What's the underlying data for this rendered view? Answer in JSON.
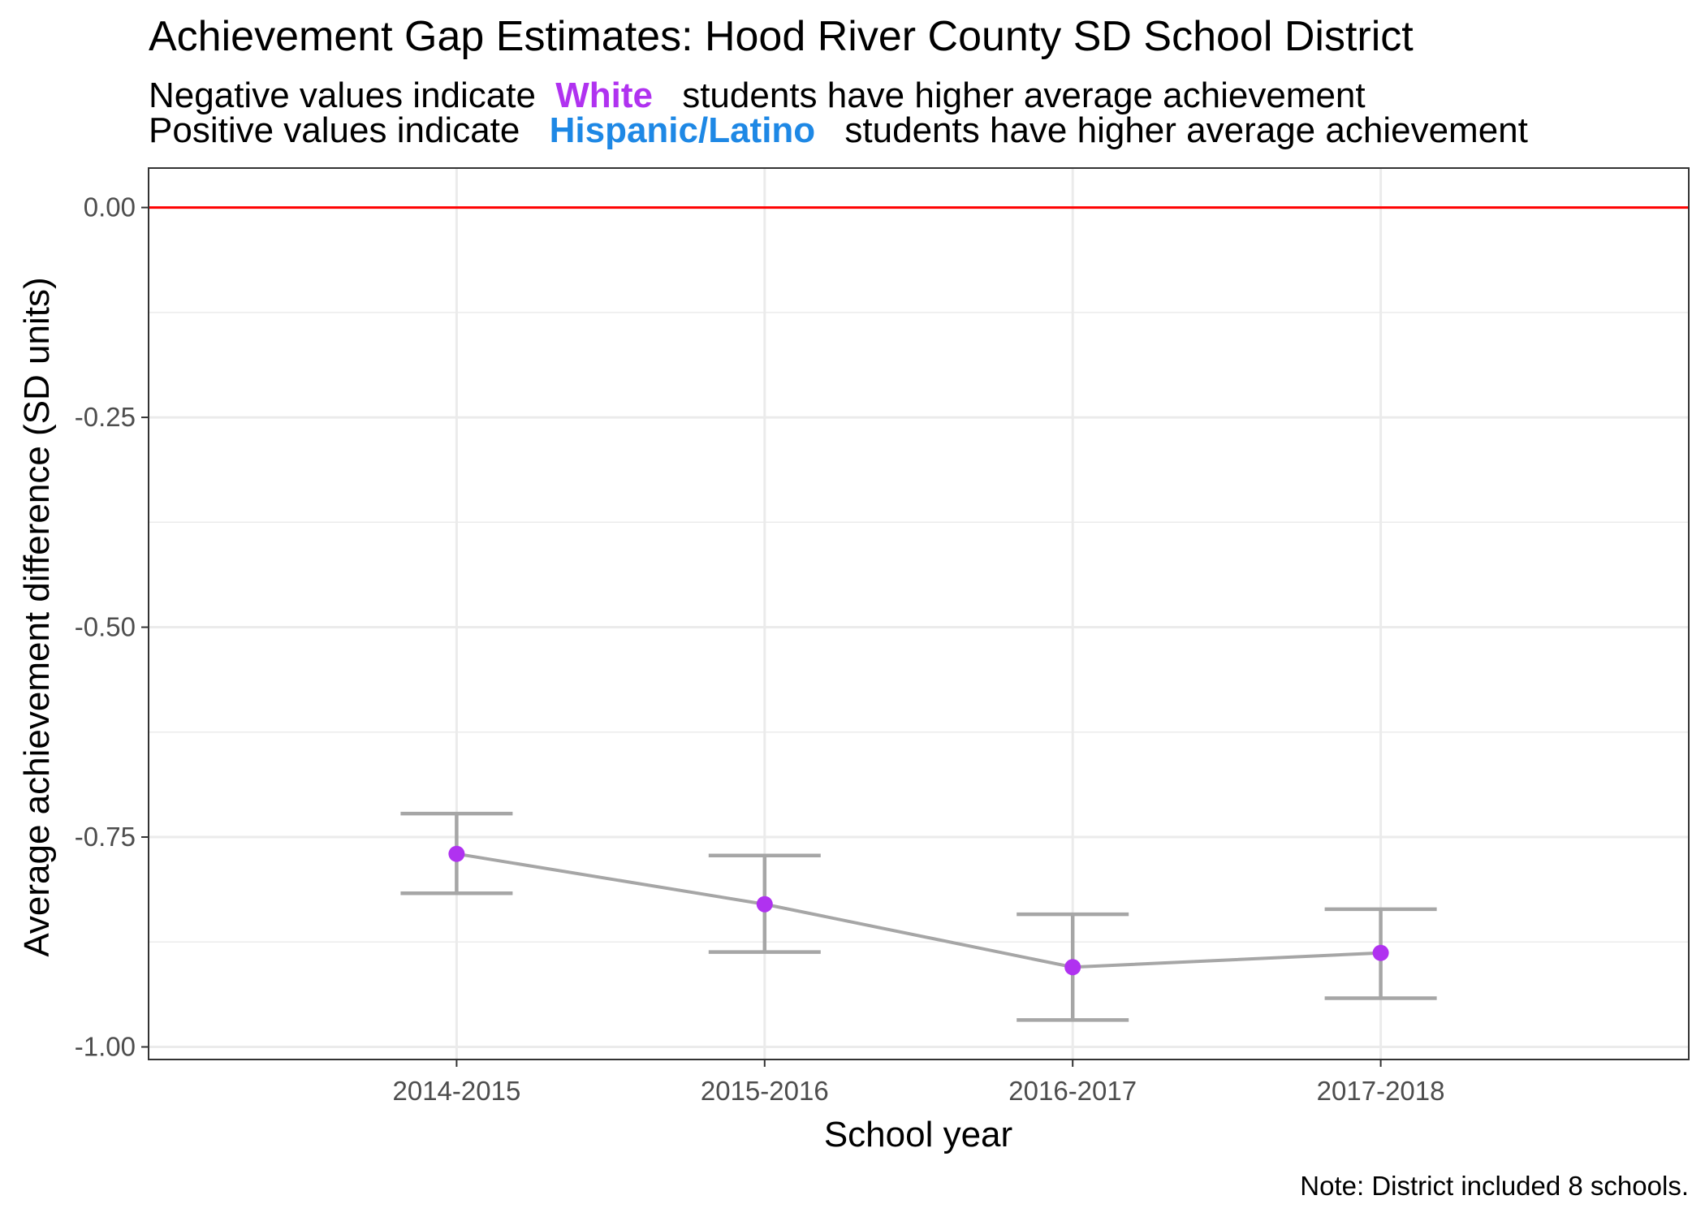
{
  "chart_data": {
    "type": "line",
    "title": "Achievement Gap Estimates: Hood River County SD School District",
    "subtitle": {
      "line1": {
        "before": "Negative values indicate",
        "group": "White",
        "after": "students have higher average achievement"
      },
      "line2": {
        "before": "Positive values indicate",
        "group": "Hispanic/Latino",
        "after": "students have higher average achievement"
      }
    },
    "xlabel": "School year",
    "ylabel": "Average achievement difference (SD units)",
    "caption": "Note: District included 8 schools.",
    "categories": [
      "2014-2015",
      "2015-2016",
      "2016-2017",
      "2017-2018"
    ],
    "series": [
      {
        "values": [
          -0.77,
          -0.83,
          -0.905,
          -0.888
        ],
        "lower": [
          -0.817,
          -0.887,
          -0.968,
          -0.942
        ],
        "upper": [
          -0.722,
          -0.772,
          -0.842,
          -0.836
        ]
      }
    ],
    "ylim": [
      -1.015,
      0.047
    ],
    "yticks": [
      0.0,
      -0.25,
      -0.5,
      -0.75,
      -1.0
    ],
    "ytick_labels": [
      "0.00",
      "-0.25",
      "-0.50",
      "-0.75",
      "-1.00"
    ],
    "reference_line": 0,
    "grid": true,
    "colors": {
      "white_group": "#b032f0",
      "hispanic_group": "#1e88e5",
      "point": "#b032f0",
      "line": "#a6a6a6",
      "reference_line": "#ff0000",
      "grid": "#ebebeb",
      "panel_border": "#333333"
    }
  }
}
